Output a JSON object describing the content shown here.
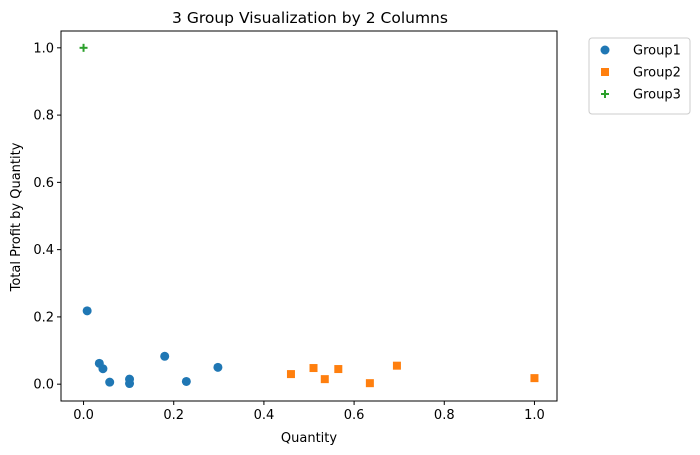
{
  "chart_data": {
    "type": "scatter",
    "title": "3 Group Visualization by 2 Columns",
    "xlabel": "Quantity",
    "ylabel": "Total Profit by Quantity",
    "xlim": [
      -0.05,
      1.05
    ],
    "ylim": [
      -0.05,
      1.05
    ],
    "xticks": [
      "0.0",
      "0.2",
      "0.4",
      "0.6",
      "0.8",
      "1.0"
    ],
    "yticks": [
      "0.0",
      "0.2",
      "0.4",
      "0.6",
      "0.8",
      "1.0"
    ],
    "grid": false,
    "legend_position": "outside-top-right",
    "series": [
      {
        "name": "Group1",
        "marker": "circle",
        "color": "#1f77b4",
        "points": [
          [
            0.008,
            0.218
          ],
          [
            0.035,
            0.062
          ],
          [
            0.043,
            0.046
          ],
          [
            0.058,
            0.006
          ],
          [
            0.102,
            0.015
          ],
          [
            0.102,
            0.002
          ],
          [
            0.18,
            0.083
          ],
          [
            0.228,
            0.008
          ],
          [
            0.298,
            0.05
          ]
        ]
      },
      {
        "name": "Group2",
        "marker": "square",
        "color": "#ff7f0e",
        "points": [
          [
            0.46,
            0.03
          ],
          [
            0.51,
            0.048
          ],
          [
            0.535,
            0.015
          ],
          [
            0.565,
            0.045
          ],
          [
            0.635,
            0.003
          ],
          [
            0.695,
            0.055
          ],
          [
            1.0,
            0.018
          ]
        ]
      },
      {
        "name": "Group3",
        "marker": "plus",
        "color": "#2ca02c",
        "points": [
          [
            0.0,
            1.0
          ]
        ]
      }
    ]
  }
}
